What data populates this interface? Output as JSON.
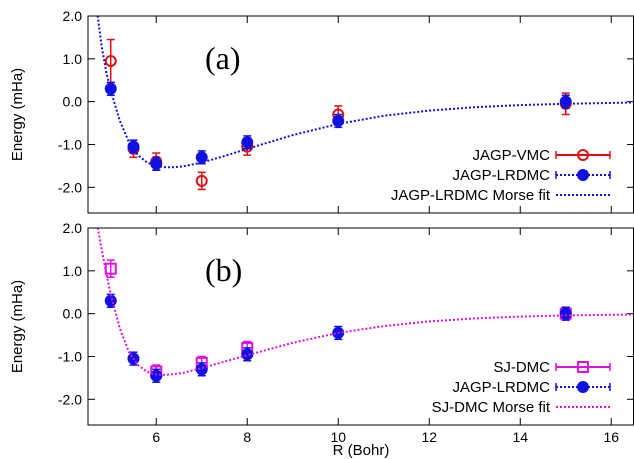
{
  "chart_data": [
    {
      "type": "scatter",
      "panel_label": "(a)",
      "ylabel": "Energy (mHa)",
      "xlabel": "",
      "xlim": [
        4.5,
        16.5
      ],
      "ylim": [
        -2.6,
        2.0
      ],
      "xticks": [],
      "yticks": [
        2.0,
        1.0,
        0.0,
        -1.0,
        -2.0
      ],
      "ytick_labels": [
        "2.0",
        "1.0",
        "0.0",
        "-1.0",
        "-2.0"
      ],
      "legend_position": "bottom-right",
      "series": [
        {
          "name": "JAGP-VMC",
          "kind": "points",
          "marker": "open-circle",
          "color": "#e01010",
          "x": [
            5.0,
            5.5,
            6.0,
            7.0,
            8.0,
            10.0,
            15.0
          ],
          "y": [
            0.95,
            -1.1,
            -1.4,
            -1.85,
            -1.05,
            -0.3,
            -0.05
          ],
          "err": [
            0.5,
            0.2,
            0.2,
            0.2,
            0.2,
            0.2,
            0.25
          ]
        },
        {
          "name": "JAGP-LRDMC",
          "kind": "points",
          "marker": "filled-circle",
          "color": "#1010e0",
          "x": [
            5.0,
            5.5,
            6.0,
            7.0,
            8.0,
            10.0,
            15.0
          ],
          "y": [
            0.3,
            -1.05,
            -1.45,
            -1.3,
            -0.95,
            -0.45,
            0.0
          ],
          "err": [
            0.15,
            0.15,
            0.15,
            0.15,
            0.15,
            0.15,
            0.15
          ]
        },
        {
          "name": "JAGP-LRDMC Morse fit",
          "kind": "curve",
          "color": "#1010e0",
          "x": [
            4.7,
            4.8,
            4.9,
            5.0,
            5.2,
            5.4,
            5.6,
            5.8,
            6.0,
            6.2,
            6.4,
            6.6,
            7.0,
            7.5,
            8.0,
            9.0,
            10.0,
            11.0,
            12.0,
            13.0,
            14.0,
            15.0,
            16.5
          ],
          "y": [
            2.1,
            1.3,
            0.7,
            0.25,
            -0.45,
            -0.95,
            -1.25,
            -1.42,
            -1.5,
            -1.53,
            -1.53,
            -1.51,
            -1.42,
            -1.27,
            -1.1,
            -0.78,
            -0.52,
            -0.33,
            -0.21,
            -0.13,
            -0.08,
            -0.05,
            -0.02
          ]
        }
      ]
    },
    {
      "type": "scatter",
      "panel_label": "(b)",
      "ylabel": "Energy (mHa)",
      "xlabel": "R (Bohr)",
      "xlim": [
        4.5,
        16.5
      ],
      "ylim": [
        -2.6,
        2.0
      ],
      "xticks": [
        6,
        8,
        10,
        12,
        14,
        16
      ],
      "xtick_labels": [
        "6",
        "8",
        "10",
        "12",
        "14",
        "16"
      ],
      "yticks": [
        2.0,
        1.0,
        0.0,
        -1.0,
        -2.0
      ],
      "ytick_labels": [
        "2.0",
        "1.0",
        "0.0",
        "-1.0",
        "-2.0"
      ],
      "legend_position": "bottom-right",
      "series": [
        {
          "name": "SJ-DMC",
          "kind": "points",
          "marker": "open-square",
          "color": "#e010e0",
          "x": [
            5.0,
            6.0,
            7.0,
            8.0,
            15.0
          ],
          "y": [
            1.05,
            -1.35,
            -1.15,
            -0.8,
            0.0
          ],
          "err": [
            0.2,
            0.15,
            0.15,
            0.15,
            0.15
          ]
        },
        {
          "name": "JAGP-LRDMC",
          "kind": "points",
          "marker": "filled-circle",
          "color": "#1010e0",
          "x": [
            5.0,
            5.5,
            6.0,
            7.0,
            8.0,
            10.0,
            15.0
          ],
          "y": [
            0.3,
            -1.05,
            -1.45,
            -1.3,
            -0.95,
            -0.45,
            0.0
          ],
          "err": [
            0.15,
            0.15,
            0.15,
            0.15,
            0.15,
            0.15,
            0.15
          ]
        },
        {
          "name": "SJ-DMC Morse fit",
          "kind": "curve",
          "color": "#e010e0",
          "x": [
            4.7,
            4.8,
            4.9,
            5.0,
            5.2,
            5.4,
            5.6,
            5.8,
            6.0,
            6.2,
            6.4,
            6.6,
            7.0,
            7.5,
            8.0,
            9.0,
            10.0,
            11.0,
            12.0,
            13.0,
            14.0,
            15.0,
            16.5
          ],
          "y": [
            2.1,
            1.5,
            0.95,
            0.45,
            -0.35,
            -0.9,
            -1.2,
            -1.36,
            -1.42,
            -1.43,
            -1.41,
            -1.38,
            -1.27,
            -1.12,
            -0.97,
            -0.68,
            -0.45,
            -0.29,
            -0.18,
            -0.11,
            -0.07,
            -0.04,
            -0.02
          ]
        }
      ]
    }
  ]
}
